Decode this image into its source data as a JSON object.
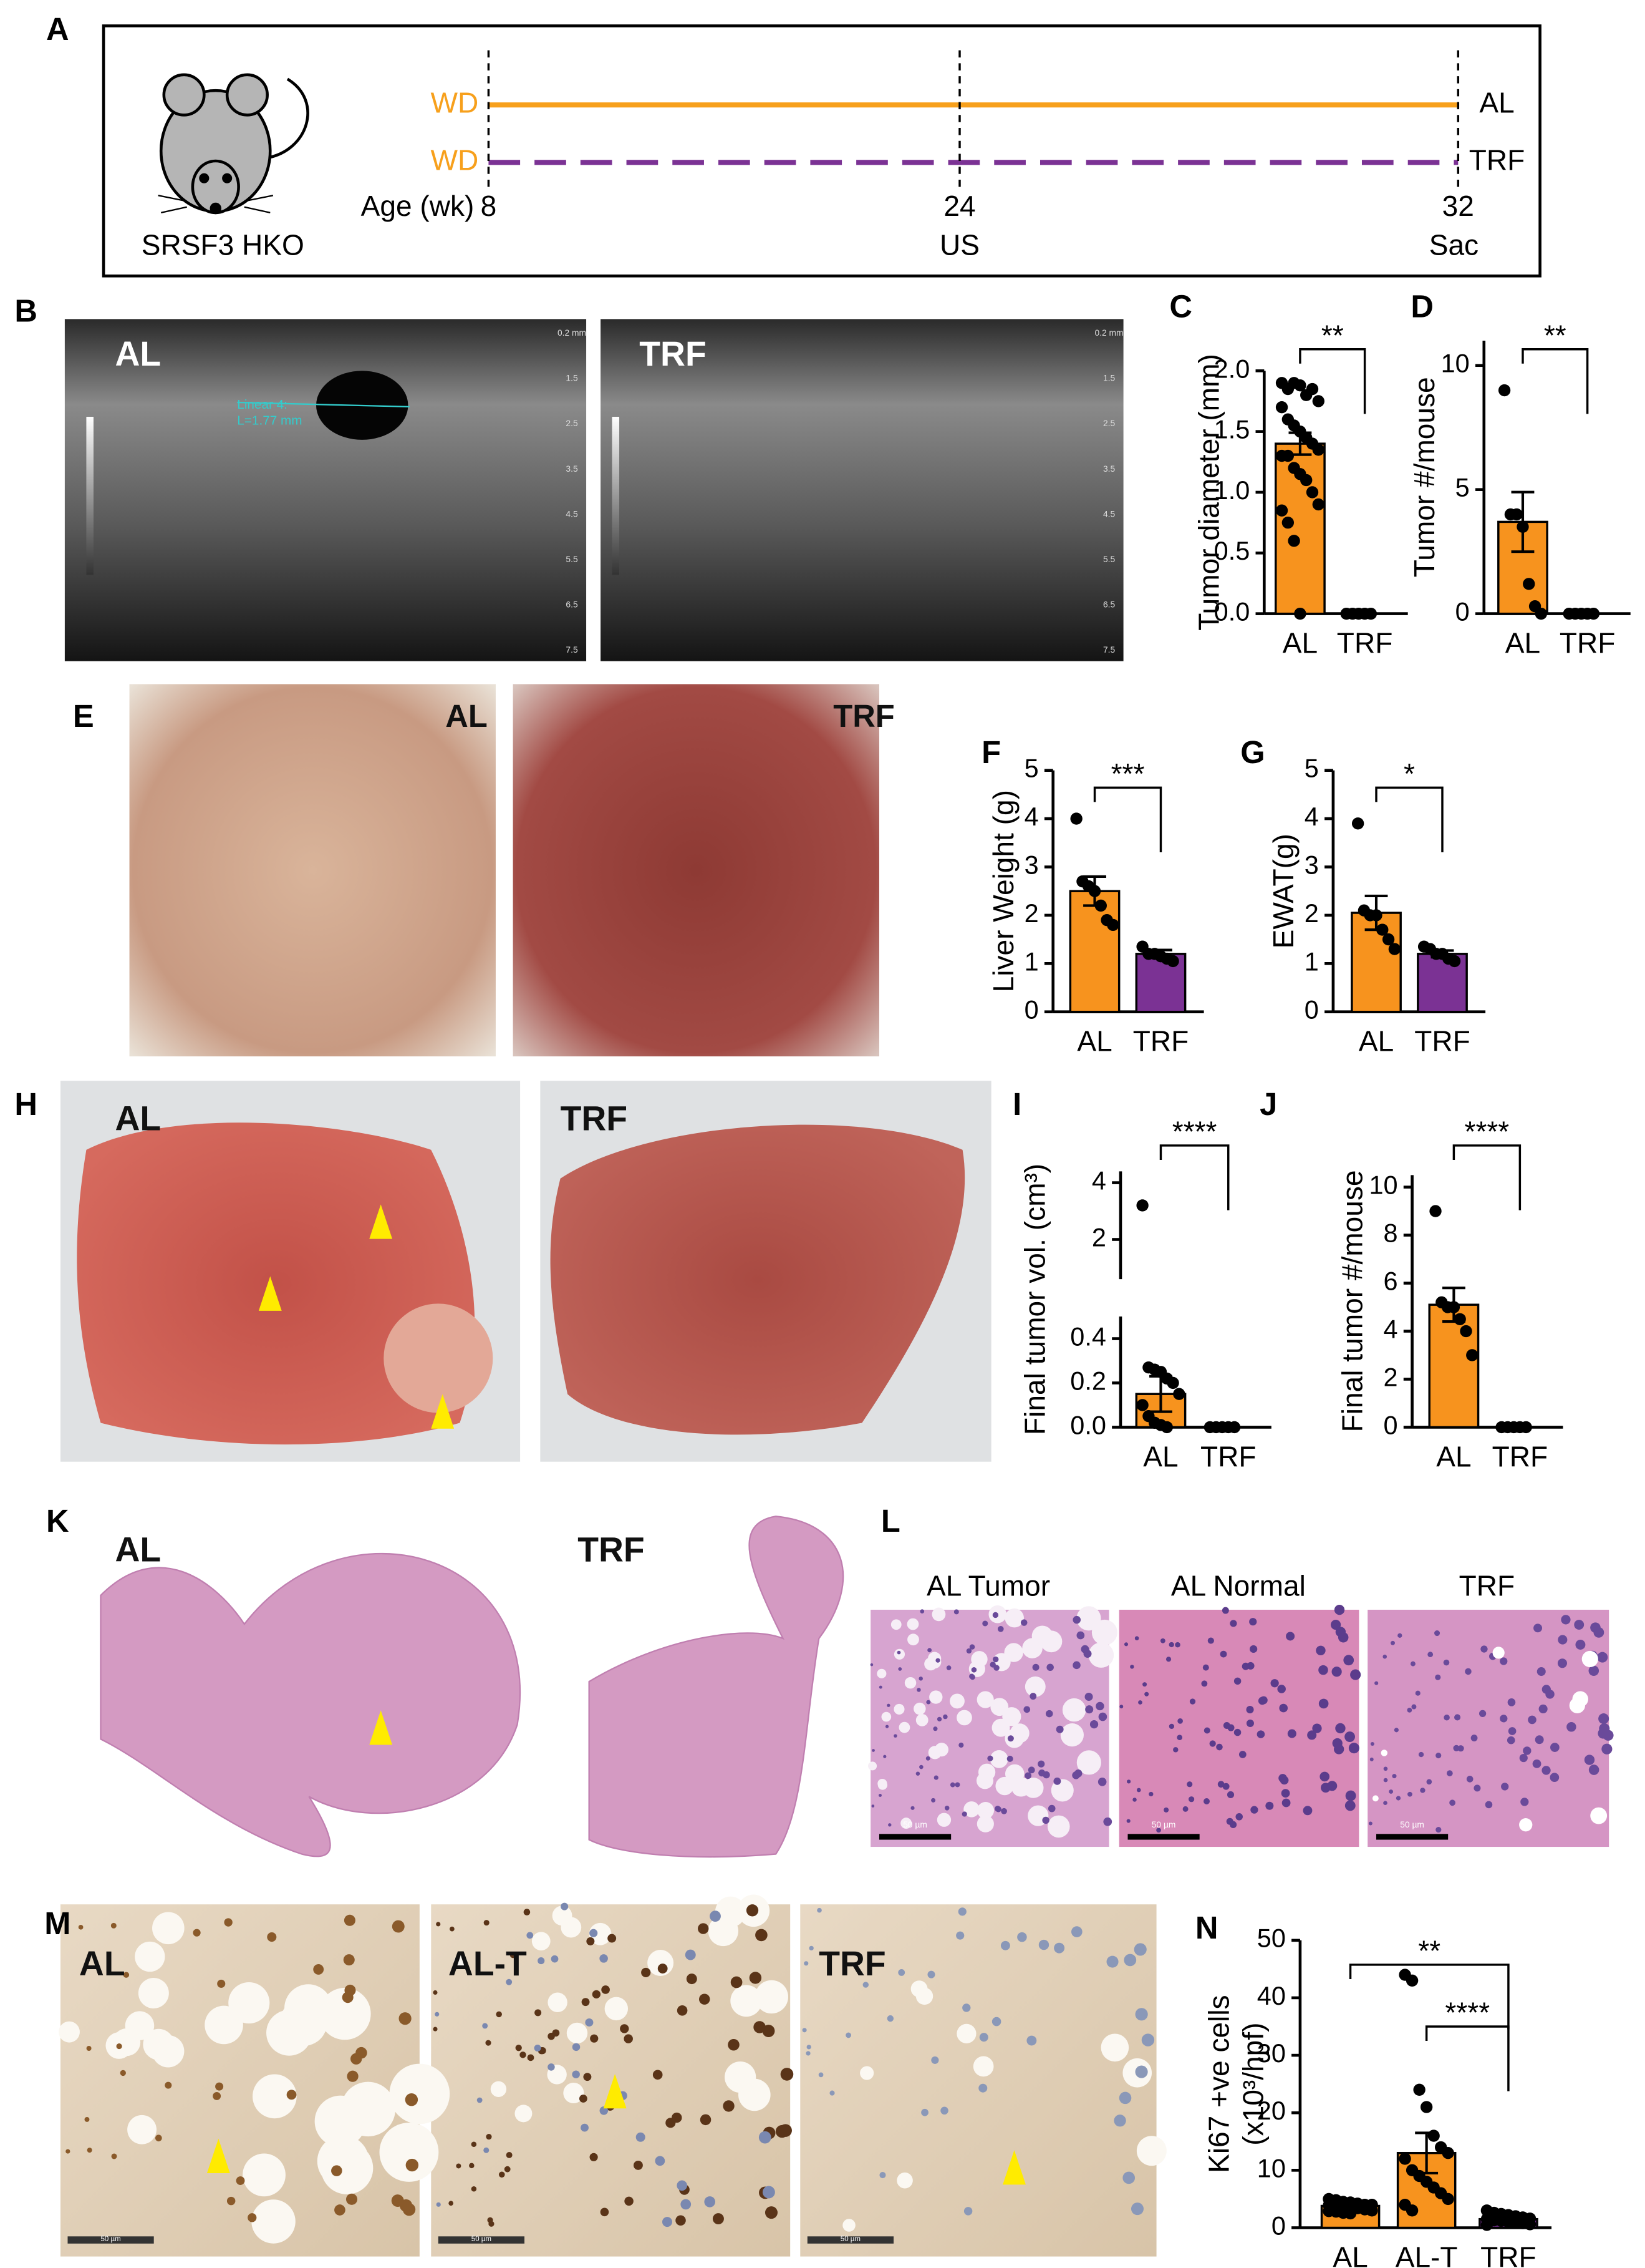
{
  "panel_labels": [
    "A",
    "B",
    "C",
    "D",
    "E",
    "F",
    "G",
    "H",
    "I",
    "J",
    "K",
    "L",
    "M",
    "N"
  ],
  "timeline": {
    "diets": [
      "WD",
      "WD"
    ],
    "colors": [
      "#f7a01c",
      "#7b3294"
    ],
    "age_label": "Age (wk)",
    "ages": [
      "8",
      "24",
      "32"
    ],
    "events": [
      "US",
      "Sac"
    ],
    "groups": [
      "AL",
      "TRF"
    ],
    "strain": "SRSF3 HKO"
  },
  "ultrasound": {
    "labels": [
      "AL",
      "TRF"
    ],
    "measurement": [
      "Linear 4:",
      "L=1.77 mm"
    ],
    "depth_scale": [
      "0.2 mm",
      "1.5",
      "2.5",
      "3.5",
      "4.5",
      "5.5",
      "6.5",
      "7.5"
    ]
  },
  "gross_images": {
    "labels": [
      "AL",
      "TRF"
    ]
  },
  "liver_images": {
    "labels": [
      "AL",
      "TRF"
    ]
  },
  "section_images": {
    "labels": [
      "AL",
      "TRF"
    ]
  },
  "he_images": {
    "labels": [
      "AL Tumor",
      "AL Normal",
      "TRF"
    ],
    "scale_bar": "50 µm"
  },
  "ki67_images": {
    "labels": [
      "AL",
      "AL-T",
      "TRF"
    ],
    "scale_bar": "50 µm"
  },
  "charts": {
    "C": {
      "type": "bar",
      "ylabel": [
        "Tumor diameter (mm)"
      ],
      "categories": [
        "AL",
        "TRF"
      ],
      "colors": [
        "#f7931e",
        "#7b3294"
      ],
      "values": [
        1.4,
        0
      ],
      "errors": [
        0.09,
        0
      ],
      "points": [
        [
          1.9,
          1.85,
          1.9,
          1.88,
          1.8,
          1.85,
          1.75,
          1.7,
          1.6,
          1.55,
          1.5,
          1.45,
          1.4,
          1.35,
          1.3,
          1.3,
          1.2,
          1.15,
          1.1,
          1.0,
          0.9,
          0.85,
          0.75,
          0.6,
          0.0
        ],
        [
          0,
          0,
          0,
          0,
          0
        ]
      ],
      "ylim": [
        0,
        2
      ],
      "yticks": [
        {
          "value": 0,
          "label": "0.0"
        },
        0.5,
        {
          "value": 1,
          "label": "1.0"
        },
        1.5,
        {
          "value": 2,
          "label": "2.0"
        }
      ],
      "significance": [
        {
          "label": "**",
          "between": [
            "AL",
            "TRF"
          ]
        }
      ]
    },
    "D": {
      "type": "bar",
      "ylabel": [
        "Tumor #/mouse"
      ],
      "categories": [
        "AL",
        "TRF"
      ],
      "colors": [
        "#f7931e",
        "#7b3294"
      ],
      "values": [
        3.7,
        0
      ],
      "errors": [
        1.2,
        0
      ],
      "points": [
        [
          9,
          4,
          4,
          3.5,
          1.2,
          0.3,
          0
        ],
        [
          0,
          0,
          0,
          0,
          0
        ]
      ],
      "ylim": [
        0,
        11
      ],
      "yticks": [
        0,
        5,
        10
      ],
      "significance": [
        {
          "label": "**",
          "between": [
            "AL",
            "TRF"
          ]
        }
      ]
    },
    "F": {
      "type": "bar",
      "ylabel": [
        "Liver Weight (g)"
      ],
      "categories": [
        "AL",
        "TRF"
      ],
      "colors": [
        "#f7931e",
        "#7b3294"
      ],
      "values": [
        2.5,
        1.2
      ],
      "errors": [
        0.3,
        0.08
      ],
      "points": [
        [
          4.0,
          2.7,
          2.6,
          2.5,
          2.2,
          1.9,
          1.8
        ],
        [
          1.35,
          1.2,
          1.2,
          1.15,
          1.1,
          1.05
        ]
      ],
      "ylim": [
        0,
        5
      ],
      "yticks": [
        0,
        1,
        2,
        3,
        4,
        5
      ],
      "significance": [
        {
          "label": "***",
          "between": [
            "AL",
            "TRF"
          ]
        }
      ]
    },
    "G": {
      "type": "bar",
      "ylabel": [
        "EWAT(g)"
      ],
      "categories": [
        "AL",
        "TRF"
      ],
      "colors": [
        "#f7931e",
        "#7b3294"
      ],
      "values": [
        2.05,
        1.2
      ],
      "errors": [
        0.35,
        0.07
      ],
      "points": [
        [
          3.9,
          2.1,
          2.0,
          2.0,
          1.7,
          1.5,
          1.3
        ],
        [
          1.35,
          1.3,
          1.2,
          1.2,
          1.1,
          1.05
        ]
      ],
      "ylim": [
        0,
        5
      ],
      "yticks": [
        0,
        1,
        2,
        3,
        4,
        5
      ],
      "significance": [
        {
          "label": "*",
          "between": [
            "AL",
            "TRF"
          ]
        }
      ]
    },
    "I": {
      "type": "bar",
      "ylabel": [
        "Final tumor vol. (cm³)"
      ],
      "categories": [
        "AL",
        "TRF"
      ],
      "colors": [
        "#f7931e",
        "#7b3294"
      ],
      "values": [
        0.15,
        0
      ],
      "errors": [
        0.08,
        0
      ],
      "points": [
        [
          3.2,
          0.27,
          0.26,
          0.25,
          0.22,
          0.2,
          0.15,
          0.1,
          0.05,
          0.02,
          0.01,
          0.0
        ],
        [
          0,
          0,
          0,
          0,
          0
        ]
      ],
      "ylim": [
        0,
        0.5
      ],
      "yticks": [
        {
          "value": 0,
          "label": "0.0"
        },
        0.2,
        0.4
      ],
      "ylim_upper": [
        0.6,
        4.4
      ],
      "yticks_upper": [
        2,
        4
      ],
      "significance": [
        {
          "label": "****",
          "between": [
            "AL",
            "TRF"
          ]
        }
      ]
    },
    "J": {
      "type": "bar",
      "ylabel": [
        "Final tumor #/mouse"
      ],
      "categories": [
        "AL",
        "TRF"
      ],
      "colors": [
        "#f7931e",
        "#7b3294"
      ],
      "values": [
        5.1,
        0
      ],
      "errors": [
        0.7,
        0
      ],
      "points": [
        [
          9,
          5.2,
          5,
          5,
          4.5,
          4,
          3
        ],
        [
          0,
          0,
          0,
          0,
          0
        ]
      ],
      "ylim": [
        0,
        10.5
      ],
      "yticks": [
        0,
        2,
        4,
        6,
        8,
        10
      ],
      "significance": [
        {
          "label": "****",
          "between": [
            "AL",
            "TRF"
          ]
        }
      ]
    },
    "N": {
      "type": "bar",
      "ylabel": [
        "Ki67 +ve cells",
        "(x10³/hpf)"
      ],
      "categories": [
        "AL",
        "AL-T",
        "TRF"
      ],
      "colors": [
        "#f7931e",
        "#f7931e",
        "#7b3294"
      ],
      "values": [
        3.8,
        13,
        1.5
      ],
      "errors": [
        0.3,
        3.5,
        0.2
      ],
      "points": [
        [
          5,
          4.8,
          4.5,
          4.4,
          4.2,
          4,
          4,
          3.9,
          3.8,
          3.6,
          3.5,
          3.4,
          3.2,
          3,
          2.9,
          2.8,
          2.6,
          2.5
        ],
        [
          44,
          43,
          24,
          21,
          16,
          14,
          13,
          12,
          10,
          9,
          8,
          7,
          6,
          5,
          4,
          3
        ],
        [
          3,
          2.6,
          2.4,
          2.2,
          2,
          1.8,
          1.6,
          1.5,
          1.3,
          1.2,
          1,
          0.9,
          0.8,
          0.6,
          0.5
        ]
      ],
      "ylim": [
        0,
        50
      ],
      "yticks": [
        0,
        10,
        20,
        30,
        40,
        50
      ],
      "significance": [
        {
          "label": "**",
          "between": [
            "AL",
            "TRF"
          ]
        },
        {
          "label": "****",
          "between": [
            "AL-T",
            "TRF"
          ]
        }
      ]
    }
  }
}
